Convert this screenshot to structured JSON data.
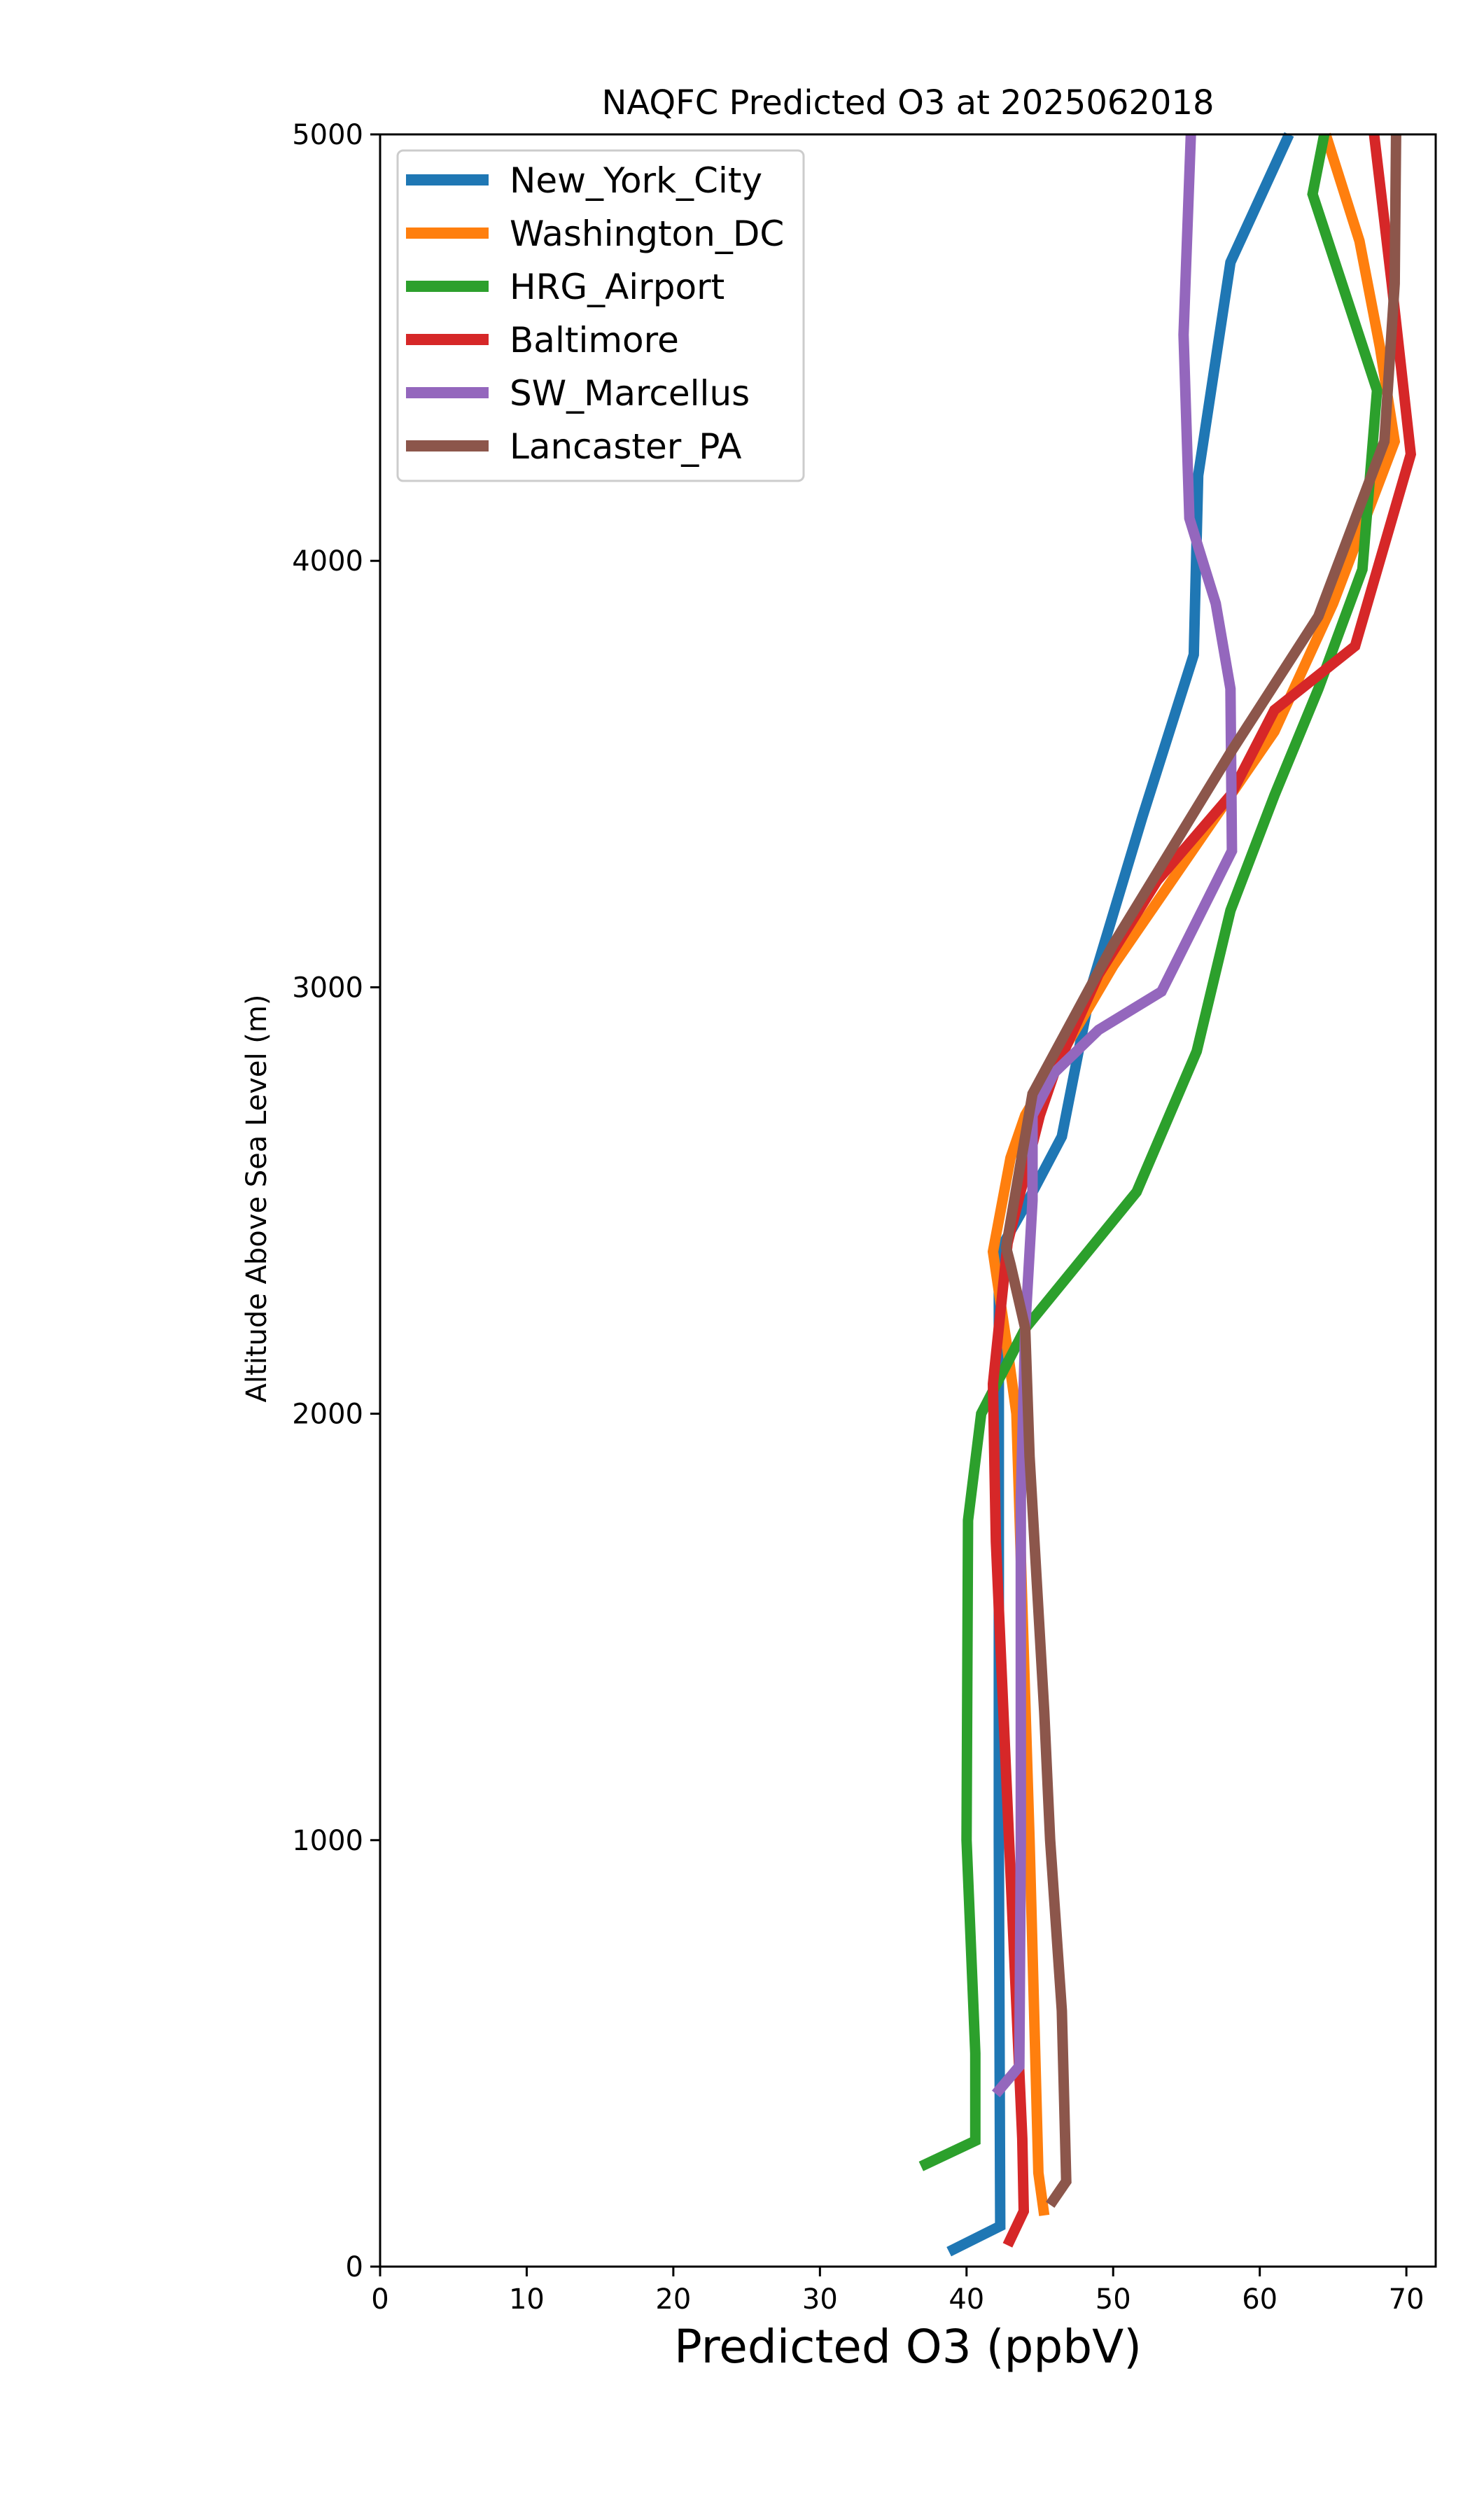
{
  "chart_data": {
    "type": "line",
    "title": "NAQFC Predicted O3 at 2025062018",
    "xlabel": "Predicted O3 (ppbV)",
    "ylabel": "Altitude Above Sea Level (m)",
    "xlim": [
      0,
      72
    ],
    "ylim": [
      0,
      5000
    ],
    "xticks": [
      0,
      10,
      20,
      30,
      40,
      50,
      60,
      70
    ],
    "yticks": [
      0,
      1000,
      2000,
      3000,
      4000,
      5000
    ],
    "grid": false,
    "legend_position": "upper-left",
    "series": [
      {
        "name": "New_York_City",
        "color": "#1f77b4",
        "points": [
          [
            38.8,
            35
          ],
          [
            42.3,
            95
          ],
          [
            42.2,
            1000
          ],
          [
            42.2,
            2000
          ],
          [
            42.2,
            2380
          ],
          [
            44.2,
            2500
          ],
          [
            46.5,
            2650
          ],
          [
            48.5,
            3000
          ],
          [
            52.0,
            3400
          ],
          [
            55.5,
            3780
          ],
          [
            55.8,
            4200
          ],
          [
            58.0,
            4700
          ],
          [
            62.0,
            5000
          ]
        ]
      },
      {
        "name": "Washington_DC",
        "color": "#ff7f0e",
        "points": [
          [
            45.3,
            120
          ],
          [
            44.9,
            220
          ],
          [
            44.3,
            1000
          ],
          [
            43.4,
            2000
          ],
          [
            42.8,
            2150
          ],
          [
            41.8,
            2380
          ],
          [
            43.0,
            2600
          ],
          [
            44.0,
            2700
          ],
          [
            50.0,
            3050
          ],
          [
            57.0,
            3400
          ],
          [
            61.0,
            3600
          ],
          [
            65.0,
            3900
          ],
          [
            69.2,
            4280
          ],
          [
            68.2,
            4500
          ],
          [
            66.8,
            4750
          ],
          [
            64.5,
            5000
          ]
        ]
      },
      {
        "name": "HRG_Airport",
        "color": "#2ca02c",
        "points": [
          [
            36.9,
            235
          ],
          [
            40.6,
            295
          ],
          [
            40.6,
            500
          ],
          [
            40.0,
            1000
          ],
          [
            40.1,
            1750
          ],
          [
            41.0,
            2000
          ],
          [
            44.0,
            2200
          ],
          [
            51.6,
            2520
          ],
          [
            55.7,
            2850
          ],
          [
            58.0,
            3180
          ],
          [
            61.0,
            3450
          ],
          [
            64.0,
            3700
          ],
          [
            67.0,
            3980
          ],
          [
            68.0,
            4400
          ],
          [
            63.6,
            4860
          ],
          [
            64.4,
            5000
          ]
        ]
      },
      {
        "name": "Baltimore",
        "color": "#d62728",
        "points": [
          [
            42.8,
            50
          ],
          [
            43.9,
            130
          ],
          [
            43.8,
            300
          ],
          [
            42.9,
            1000
          ],
          [
            42.0,
            1700
          ],
          [
            41.8,
            2070
          ],
          [
            42.8,
            2400
          ],
          [
            45.0,
            2700
          ],
          [
            46.0,
            2800
          ],
          [
            49.0,
            3030
          ],
          [
            53.0,
            3250
          ],
          [
            58.0,
            3450
          ],
          [
            61.0,
            3650
          ],
          [
            66.5,
            3800
          ],
          [
            70.3,
            4250
          ],
          [
            69.0,
            4650
          ],
          [
            67.8,
            5000
          ]
        ]
      },
      {
        "name": "SW_Marcellus",
        "color": "#9467bd",
        "points": [
          [
            42.0,
            405
          ],
          [
            43.6,
            470
          ],
          [
            43.7,
            1000
          ],
          [
            43.7,
            1800
          ],
          [
            44.0,
            2200
          ],
          [
            44.5,
            2500
          ],
          [
            44.5,
            2700
          ],
          [
            46.0,
            2800
          ],
          [
            49.0,
            2900
          ],
          [
            53.3,
            2990
          ],
          [
            58.1,
            3320
          ],
          [
            58.0,
            3700
          ],
          [
            57.0,
            3900
          ],
          [
            55.2,
            4100
          ],
          [
            54.8,
            4530
          ],
          [
            55.3,
            5000
          ]
        ]
      },
      {
        "name": "Lancaster_PA",
        "color": "#8c564b",
        "points": [
          [
            45.7,
            145
          ],
          [
            46.8,
            200
          ],
          [
            46.5,
            600
          ],
          [
            45.7,
            1000
          ],
          [
            45.3,
            1300
          ],
          [
            44.3,
            1900
          ],
          [
            44.0,
            2200
          ],
          [
            43.0,
            2350
          ],
          [
            42.7,
            2390
          ],
          [
            43.5,
            2550
          ],
          [
            44.5,
            2750
          ],
          [
            50.0,
            3100
          ],
          [
            58.0,
            3550
          ],
          [
            64.0,
            3870
          ],
          [
            68.5,
            4280
          ],
          [
            69.2,
            4650
          ],
          [
            69.3,
            5000
          ]
        ]
      }
    ]
  }
}
